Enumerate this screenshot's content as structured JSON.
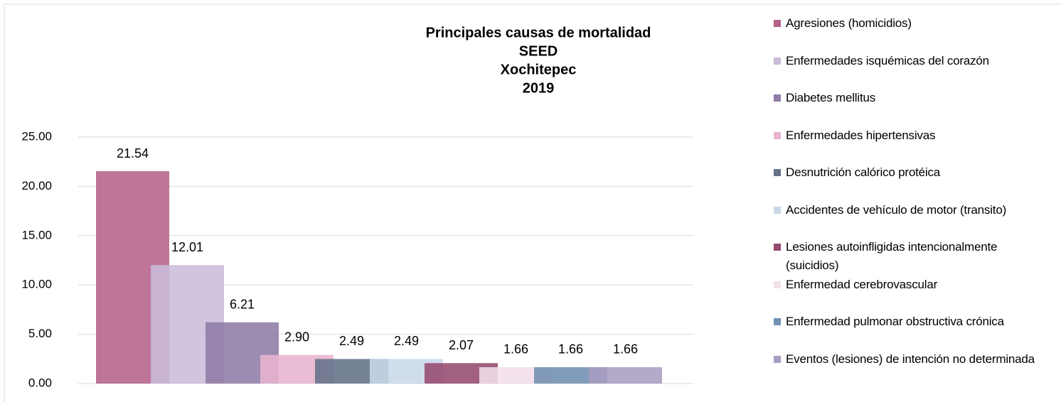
{
  "chart_data": {
    "type": "bar",
    "title": [
      "Principales causas de mortalidad",
      "SEED",
      "Xochitepec",
      "2019"
    ],
    "series": [
      {
        "name": "Agresiones (homicidios)",
        "color": "#b5628a",
        "values": [
          21.54
        ],
        "value_labels": [
          "21.54"
        ]
      },
      {
        "name": "Enfermedades isquémicas del corazón",
        "color": "#c9bcd9",
        "values": [
          12.01
        ],
        "value_labels": [
          "12.01"
        ]
      },
      {
        "name": "Diabetes mellitus",
        "color": "#907ca6",
        "values": [
          6.21
        ],
        "value_labels": [
          "6.21"
        ]
      },
      {
        "name": "Enfermedades hipertensivas",
        "color": "#e8b4cf",
        "values": [
          2.9
        ],
        "value_labels": [
          "2.90"
        ]
      },
      {
        "name": "Desnutrición calórico protéica",
        "color": "#637289",
        "values": [
          2.49
        ],
        "value_labels": [
          "2.49"
        ]
      },
      {
        "name": "Accidentes de vehículo de motor (transito)",
        "color": "#c9d8e9",
        "values": [
          2.49
        ],
        "value_labels": [
          "2.49"
        ]
      },
      {
        "name": "Lesiones autoinfligidas intencionalmente (suicidios)",
        "color": "#954a70",
        "values": [
          2.07
        ],
        "value_labels": [
          "2.07"
        ]
      },
      {
        "name": "Enfermedad cerebrovascular",
        "color": "#f2dfe9",
        "values": [
          1.66
        ],
        "value_labels": [
          "1.66"
        ]
      },
      {
        "name": "Enfermedad pulmonar obstructiva crónica",
        "color": "#7190b3",
        "values": [
          1.66
        ],
        "value_labels": [
          "1.66"
        ]
      },
      {
        "name": "Eventos (lesiones) de intención no determinada",
        "color": "#aa9dc1",
        "values": [
          1.66
        ],
        "value_labels": [
          "1.66"
        ]
      }
    ],
    "ylim": [
      0,
      25
    ],
    "yticks": [
      {
        "value": 0,
        "label": "0.00"
      },
      {
        "value": 5,
        "label": "5.00"
      },
      {
        "value": 10,
        "label": "10.00"
      },
      {
        "value": 15,
        "label": "15.00"
      },
      {
        "value": 20,
        "label": "20.00"
      },
      {
        "value": 25,
        "label": "25.00"
      }
    ],
    "grid": true,
    "legend": "right"
  }
}
